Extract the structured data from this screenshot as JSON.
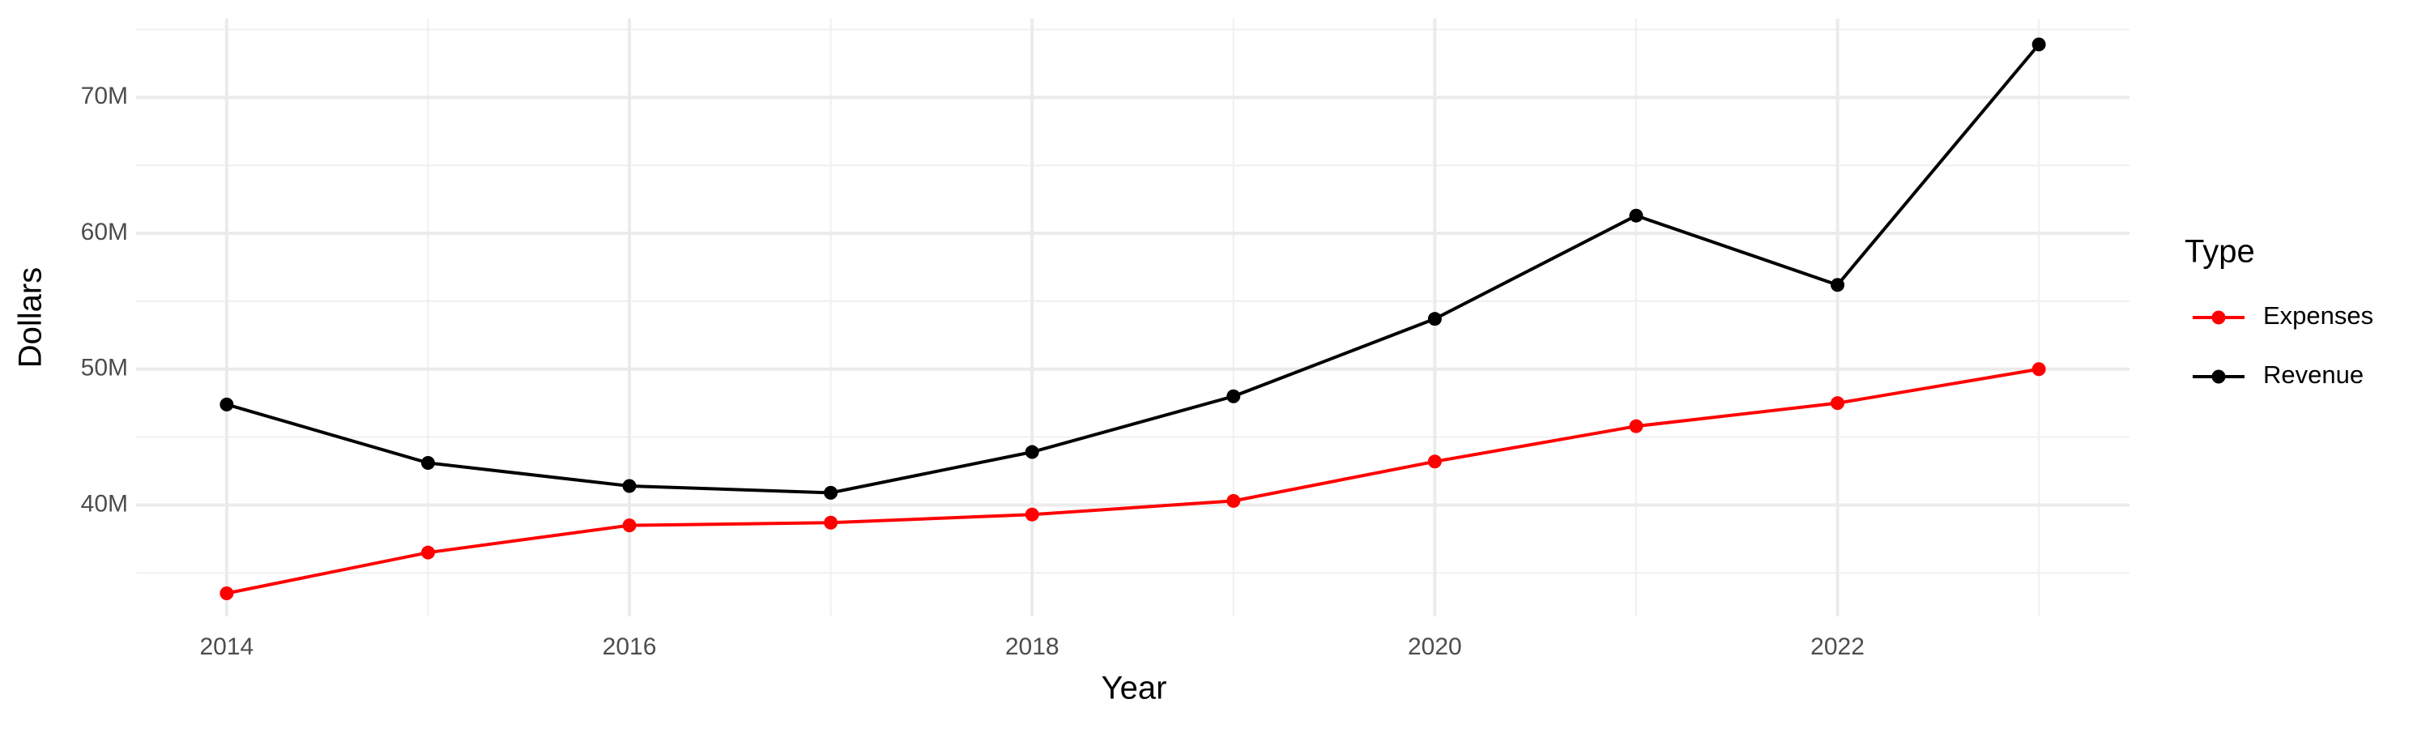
{
  "chart_data": {
    "type": "line",
    "x_label": "Year",
    "y_label": "Dollars",
    "x": [
      2014,
      2015,
      2016,
      2017,
      2018,
      2019,
      2020,
      2021,
      2022,
      2023
    ],
    "series": [
      {
        "name": "Expenses",
        "color": "#ff0000",
        "values": [
          33500000,
          36500000,
          38500000,
          38700000,
          39300000,
          40300000,
          43200000,
          45800000,
          47500000,
          50000000
        ]
      },
      {
        "name": "Revenue",
        "color": "#000000",
        "values": [
          47400000,
          43100000,
          41400000,
          40900000,
          43900000,
          48000000,
          53700000,
          61300000,
          56200000,
          73900000
        ]
      }
    ],
    "xlim": [
      2013.55,
      2023.45
    ],
    "xticks": [
      2014,
      2016,
      2018,
      2020,
      2022
    ],
    "ylim": [
      31800000,
      75800000
    ],
    "yticks": [
      {
        "value": 40000000,
        "label": "40M"
      },
      {
        "value": 50000000,
        "label": "50M"
      },
      {
        "value": 60000000,
        "label": "60M"
      },
      {
        "value": 70000000,
        "label": "70M"
      }
    ],
    "grid": true,
    "legend_title": "Type",
    "legend_position": "right"
  }
}
